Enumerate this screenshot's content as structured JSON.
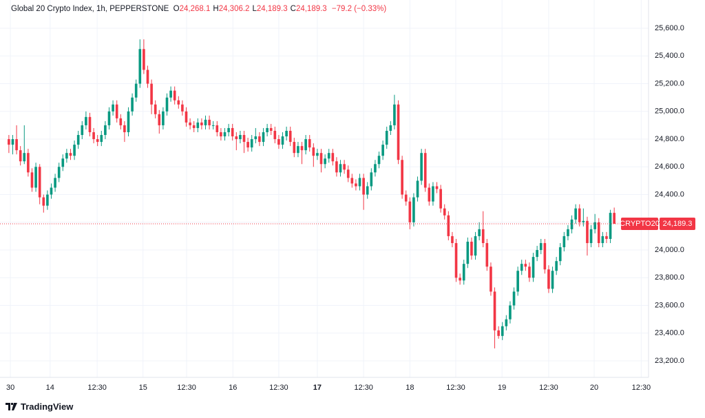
{
  "chart_data": {
    "type": "candlestick",
    "title": "Global 20 Crypto Index, 1h, PEPPERSTONE",
    "ohlc_header": [
      {
        "label": "O",
        "value": "24,268.1"
      },
      {
        "label": "H",
        "value": "24,306.2"
      },
      {
        "label": "L",
        "value": "24,189.3"
      },
      {
        "label": "C",
        "value": "24,189.3"
      }
    ],
    "change": "−79.2 (−0.33%)",
    "symbol_tag": "CRYPTO20",
    "last_price_label": "24,189.3",
    "up_color": "#089981",
    "down_color": "#f23645",
    "grid": true,
    "xlim": [
      -2.3,
      165.9
    ],
    "xticks": [
      {
        "value": 0.4,
        "label": "30"
      },
      {
        "value": 10.7,
        "label": "14"
      },
      {
        "value": 22.9,
        "label": "12:30"
      },
      {
        "value": 34.8,
        "label": "15"
      },
      {
        "value": 46.1,
        "label": "12:30"
      },
      {
        "value": 58.1,
        "label": "16"
      },
      {
        "value": 70,
        "label": "12:30"
      },
      {
        "value": 80,
        "label": "17",
        "bold": true
      },
      {
        "value": 92,
        "label": "12:30"
      },
      {
        "value": 104,
        "label": "18"
      },
      {
        "value": 115.9,
        "label": "12:30"
      },
      {
        "value": 127.9,
        "label": "19"
      },
      {
        "value": 140,
        "label": "12:30"
      },
      {
        "value": 151.8,
        "label": "20"
      },
      {
        "value": 164,
        "label": "12:30"
      }
    ],
    "ylim": [
      23081,
      25804
    ],
    "yticks": [
      {
        "value": 23200,
        "label": "23,200.0"
      },
      {
        "value": 23400,
        "label": "23,400.0"
      },
      {
        "value": 23600,
        "label": "23,600.0"
      },
      {
        "value": 23800,
        "label": "23,800.0"
      },
      {
        "value": 24000,
        "label": "24,000.0"
      },
      {
        "value": 24200,
        "label": "24,200.0"
      },
      {
        "value": 24400,
        "label": "24,400.0"
      },
      {
        "value": 24600,
        "label": "24,600.0"
      },
      {
        "value": 24800,
        "label": "24,800.0"
      },
      {
        "value": 25000,
        "label": "25,000.0"
      },
      {
        "value": 25200,
        "label": "25,200.0"
      },
      {
        "value": 25400,
        "label": "25,400.0"
      },
      {
        "value": 25600,
        "label": "25,600.0"
      }
    ],
    "ohlc": [
      [
        24800,
        24830,
        24700,
        24760
      ],
      [
        24760,
        24830,
        24690,
        24800
      ],
      [
        24800,
        24900,
        24690,
        24720
      ],
      [
        24720,
        24750,
        24610,
        24640
      ],
      [
        24640,
        24900,
        24620,
        24700
      ],
      [
        24700,
        24730,
        24530,
        24560
      ],
      [
        24560,
        24590,
        24420,
        24450
      ],
      [
        24450,
        24630,
        24420,
        24600
      ],
      [
        24600,
        24620,
        24330,
        24380
      ],
      [
        24380,
        24400,
        24270,
        24320
      ],
      [
        24320,
        24430,
        24290,
        24400
      ],
      [
        24400,
        24480,
        24370,
        24450
      ],
      [
        24450,
        24550,
        24420,
        24520
      ],
      [
        24520,
        24630,
        24490,
        24600
      ],
      [
        24600,
        24690,
        24570,
        24660
      ],
      [
        24660,
        24730,
        24630,
        24700
      ],
      [
        24700,
        24730,
        24650,
        24680
      ],
      [
        24680,
        24790,
        24650,
        24760
      ],
      [
        24760,
        24860,
        24730,
        24830
      ],
      [
        24830,
        24930,
        24800,
        24900
      ],
      [
        24900,
        25000,
        24870,
        24960
      ],
      [
        24960,
        24990,
        24820,
        24850
      ],
      [
        24850,
        24880,
        24770,
        24800
      ],
      [
        24800,
        24830,
        24750,
        24780
      ],
      [
        24780,
        24860,
        24750,
        24830
      ],
      [
        24830,
        24930,
        24800,
        24900
      ],
      [
        24900,
        25030,
        24870,
        25000
      ],
      [
        25000,
        25080,
        24970,
        25050
      ],
      [
        25050,
        25080,
        24920,
        24950
      ],
      [
        24950,
        24980,
        24870,
        24900
      ],
      [
        24900,
        24930,
        24780,
        24850
      ],
      [
        24850,
        25030,
        24820,
        25000
      ],
      [
        25000,
        25130,
        24970,
        25100
      ],
      [
        25100,
        25230,
        25070,
        25200
      ],
      [
        25200,
        25520,
        25170,
        25450
      ],
      [
        25450,
        25520,
        25270,
        25300
      ],
      [
        25300,
        25330,
        25170,
        25200
      ],
      [
        25200,
        25230,
        24980,
        25050
      ],
      [
        25050,
        25080,
        24950,
        24980
      ],
      [
        24980,
        25010,
        24840,
        24900
      ],
      [
        24900,
        25030,
        24870,
        25000
      ],
      [
        25000,
        25130,
        24970,
        25100
      ],
      [
        25100,
        25180,
        25070,
        25150
      ],
      [
        25150,
        25180,
        25050,
        25080
      ],
      [
        25080,
        25110,
        25020,
        25050
      ],
      [
        25050,
        25080,
        24970,
        25000
      ],
      [
        25000,
        25030,
        24890,
        24920
      ],
      [
        24920,
        24950,
        24870,
        24900
      ],
      [
        24900,
        24930,
        24850,
        24880
      ],
      [
        24880,
        24950,
        24850,
        24920
      ],
      [
        24920,
        24950,
        24870,
        24900
      ],
      [
        24900,
        24970,
        24870,
        24940
      ],
      [
        24940,
        24970,
        24870,
        24900
      ],
      [
        24900,
        24930,
        24870,
        24900
      ],
      [
        24900,
        24930,
        24820,
        24850
      ],
      [
        24850,
        24880,
        24790,
        24820
      ],
      [
        24820,
        24880,
        24790,
        24850
      ],
      [
        24850,
        24910,
        24820,
        24880
      ],
      [
        24880,
        24910,
        24790,
        24820
      ],
      [
        24820,
        24850,
        24720,
        24800
      ],
      [
        24800,
        24860,
        24770,
        24830
      ],
      [
        24830,
        24860,
        24700,
        24780
      ],
      [
        24780,
        24810,
        24710,
        24740
      ],
      [
        24740,
        24830,
        24710,
        24800
      ],
      [
        24800,
        24880,
        24770,
        24820
      ],
      [
        24820,
        24850,
        24750,
        24780
      ],
      [
        24780,
        24880,
        24750,
        24850
      ],
      [
        24850,
        24910,
        24820,
        24880
      ],
      [
        24880,
        24910,
        24830,
        24860
      ],
      [
        24860,
        24890,
        24770,
        24800
      ],
      [
        24800,
        24830,
        24730,
        24760
      ],
      [
        24760,
        24850,
        24730,
        24820
      ],
      [
        24820,
        24890,
        24790,
        24860
      ],
      [
        24860,
        24890,
        24750,
        24780
      ],
      [
        24780,
        24810,
        24670,
        24700
      ],
      [
        24700,
        24780,
        24670,
        24750
      ],
      [
        24750,
        24780,
        24620,
        24720
      ],
      [
        24720,
        24830,
        24690,
        24800
      ],
      [
        24800,
        24830,
        24710,
        24740
      ],
      [
        24740,
        24770,
        24600,
        24680
      ],
      [
        24680,
        24730,
        24650,
        24700
      ],
      [
        24700,
        24730,
        24560,
        24620
      ],
      [
        24620,
        24690,
        24590,
        24660
      ],
      [
        24660,
        24730,
        24630,
        24700
      ],
      [
        24700,
        24730,
        24610,
        24640
      ],
      [
        24640,
        24670,
        24530,
        24560
      ],
      [
        24560,
        24650,
        24530,
        24620
      ],
      [
        24620,
        24650,
        24550,
        24580
      ],
      [
        24580,
        24610,
        24490,
        24520
      ],
      [
        24520,
        24550,
        24450,
        24480
      ],
      [
        24480,
        24510,
        24430,
        24460
      ],
      [
        24460,
        24550,
        24430,
        24520
      ],
      [
        24520,
        24550,
        24290,
        24400
      ],
      [
        24400,
        24490,
        24370,
        24460
      ],
      [
        24460,
        24590,
        24430,
        24560
      ],
      [
        24560,
        24650,
        24530,
        24620
      ],
      [
        24620,
        24710,
        24590,
        24680
      ],
      [
        24680,
        24790,
        24650,
        24760
      ],
      [
        24760,
        24890,
        24730,
        24860
      ],
      [
        24860,
        24930,
        24830,
        24900
      ],
      [
        24900,
        25120,
        24870,
        25050
      ],
      [
        25050,
        25080,
        24620,
        24650
      ],
      [
        24650,
        24680,
        24370,
        24400
      ],
      [
        24400,
        24430,
        24320,
        24350
      ],
      [
        24350,
        24380,
        24150,
        24200
      ],
      [
        24200,
        24410,
        24170,
        24380
      ],
      [
        24380,
        24530,
        24350,
        24500
      ],
      [
        24500,
        24730,
        24470,
        24700
      ],
      [
        24700,
        24730,
        24420,
        24450
      ],
      [
        24450,
        24480,
        24320,
        24350
      ],
      [
        24350,
        24490,
        24320,
        24460
      ],
      [
        24460,
        24490,
        24410,
        24440
      ],
      [
        24440,
        24470,
        24270,
        24300
      ],
      [
        24300,
        24330,
        24220,
        24250
      ],
      [
        24250,
        24280,
        24070,
        24100
      ],
      [
        24100,
        24130,
        24020,
        24050
      ],
      [
        24050,
        24080,
        23770,
        23800
      ],
      [
        23800,
        23830,
        23750,
        23780
      ],
      [
        23780,
        23930,
        23750,
        23900
      ],
      [
        23900,
        24090,
        23870,
        24060
      ],
      [
        24060,
        24090,
        23930,
        23960
      ],
      [
        23960,
        24130,
        23930,
        24100
      ],
      [
        24100,
        24200,
        24070,
        24150
      ],
      [
        24150,
        24280,
        24020,
        24050
      ],
      [
        24050,
        24080,
        23850,
        23880
      ],
      [
        23880,
        23910,
        23670,
        23700
      ],
      [
        23700,
        23730,
        23290,
        23420
      ],
      [
        23420,
        23450,
        23360,
        23380
      ],
      [
        23380,
        23480,
        23350,
        23450
      ],
      [
        23450,
        23530,
        23420,
        23500
      ],
      [
        23500,
        23630,
        23470,
        23600
      ],
      [
        23600,
        23730,
        23570,
        23700
      ],
      [
        23700,
        23880,
        23670,
        23850
      ],
      [
        23850,
        23930,
        23820,
        23900
      ],
      [
        23900,
        23930,
        23850,
        23880
      ],
      [
        23880,
        23910,
        23770,
        23800
      ],
      [
        23800,
        23980,
        23770,
        23950
      ],
      [
        23950,
        24030,
        23920,
        24000
      ],
      [
        24000,
        24080,
        23970,
        24050
      ],
      [
        24050,
        24080,
        23830,
        23860
      ],
      [
        23860,
        23890,
        23690,
        23720
      ],
      [
        23720,
        23880,
        23690,
        23850
      ],
      [
        23850,
        23950,
        23820,
        23920
      ],
      [
        23920,
        24050,
        23890,
        24020
      ],
      [
        24020,
        24130,
        23990,
        24100
      ],
      [
        24100,
        24180,
        24070,
        24150
      ],
      [
        24150,
        24250,
        24120,
        24220
      ],
      [
        24220,
        24330,
        24190,
        24300
      ],
      [
        24300,
        24330,
        24170,
        24200
      ],
      [
        24200,
        24300,
        24170,
        24210
      ],
      [
        24210,
        24240,
        23960,
        24050
      ],
      [
        24050,
        24180,
        24020,
        24150
      ],
      [
        24150,
        24260,
        24120,
        24200
      ],
      [
        24200,
        24230,
        24020,
        24050
      ],
      [
        24050,
        24130,
        24020,
        24100
      ],
      [
        24100,
        24130,
        24050,
        24080
      ],
      [
        24080,
        24290,
        24050,
        24268.1
      ],
      [
        24268.1,
        24306.2,
        24189.3,
        24189.3
      ]
    ]
  },
  "footer": {
    "logo_text": "TradingView"
  }
}
